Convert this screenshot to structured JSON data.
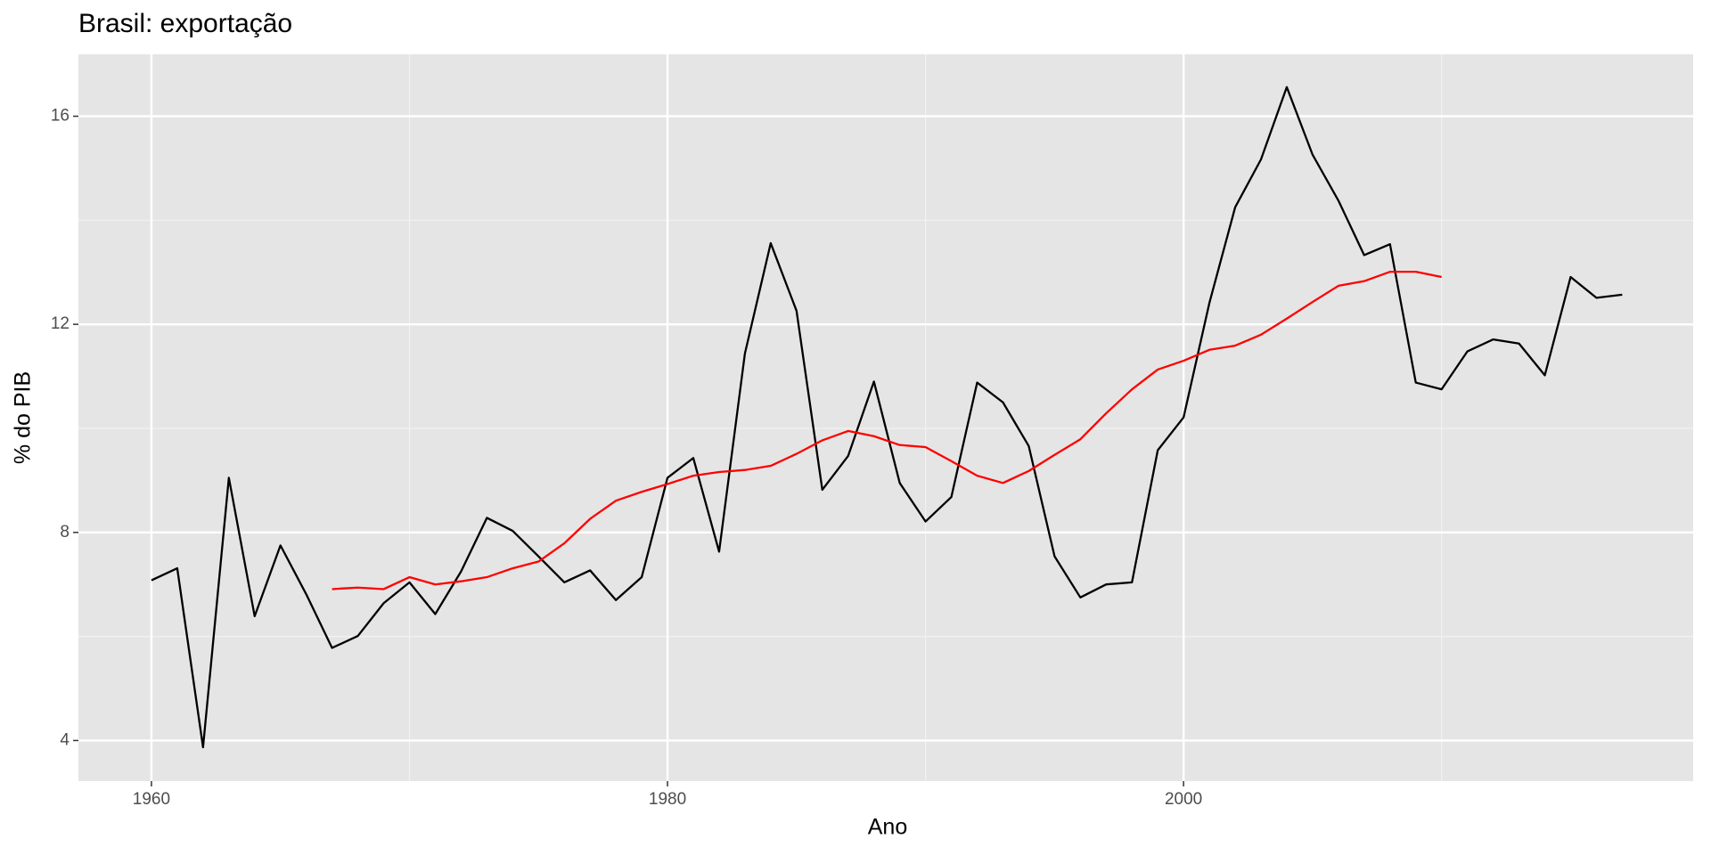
{
  "chart_data": {
    "type": "line",
    "title": "Brasil: exportação",
    "xlabel": "Ano",
    "ylabel": "% do PIB",
    "x": [
      1960,
      1961,
      1962,
      1963,
      1964,
      1965,
      1966,
      1967,
      1968,
      1969,
      1970,
      1971,
      1972,
      1973,
      1974,
      1975,
      1976,
      1977,
      1978,
      1979,
      1980,
      1981,
      1982,
      1983,
      1984,
      1985,
      1986,
      1987,
      1988,
      1989,
      1990,
      1991,
      1992,
      1993,
      1994,
      1995,
      1996,
      1997,
      1998,
      1999,
      2000,
      2001,
      2002,
      2003,
      2004,
      2005,
      2006,
      2007,
      2008,
      2009,
      2010,
      2011,
      2012,
      2013,
      2014,
      2015,
      2016,
      2017
    ],
    "series": [
      {
        "color": "#000000",
        "values": [
          7.08,
          7.31,
          3.87,
          9.05,
          6.39,
          7.75,
          6.81,
          5.78,
          6.01,
          6.64,
          7.04,
          6.43,
          7.25,
          8.28,
          8.03,
          7.54,
          7.04,
          7.27,
          6.7,
          7.14,
          9.05,
          9.43,
          7.63,
          11.44,
          13.56,
          12.26,
          8.82,
          9.47,
          10.9,
          8.95,
          8.21,
          8.68,
          10.88,
          10.5,
          9.66,
          7.54,
          6.75,
          7.0,
          7.04,
          9.58,
          10.21,
          12.41,
          14.25,
          15.17,
          16.56,
          15.26,
          14.38,
          13.33,
          13.54,
          10.88,
          10.75,
          11.48,
          11.71,
          11.63,
          11.02,
          12.91,
          12.51,
          12.57
        ]
      },
      {
        "color": "#ff0000",
        "values": [
          null,
          null,
          null,
          null,
          null,
          null,
          null,
          6.91,
          6.94,
          6.91,
          7.14,
          7.0,
          7.06,
          7.14,
          7.31,
          7.44,
          7.79,
          8.26,
          8.61,
          8.78,
          8.93,
          9.09,
          9.16,
          9.2,
          9.28,
          9.51,
          9.77,
          9.95,
          9.85,
          9.68,
          9.64,
          9.37,
          9.09,
          8.95,
          9.18,
          9.49,
          9.79,
          10.29,
          10.75,
          11.13,
          11.3,
          11.51,
          11.59,
          11.8,
          12.11,
          12.43,
          12.74,
          12.83,
          13.01,
          13.01,
          12.91,
          null,
          null,
          null,
          null,
          null,
          null,
          null
        ]
      }
    ],
    "xlim": [
      1957.17,
      2019.75
    ],
    "xticks": [
      1960,
      1980,
      2000
    ],
    "ylim": [
      3.22,
      17.19
    ],
    "yticks": [
      4,
      8,
      12,
      16
    ],
    "grid": true,
    "background": "#e5e5e5"
  }
}
